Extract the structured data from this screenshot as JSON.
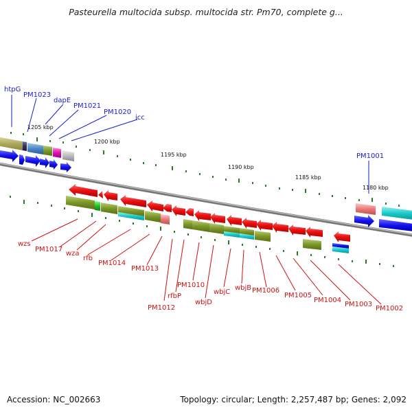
{
  "title": "Pasteurella multocida subsp. multocida str. Pm70, complete g...",
  "footer": {
    "accession": "Accession: NC_002663",
    "summary": "Topology: circular; Length: 2,257,487 bp; Genes: 2,092"
  },
  "ruler_labels": [
    "1205 kbp",
    "1200 kbp",
    "1195 kbp",
    "1190 kbp",
    "1185 kbp",
    "1180 kbp"
  ],
  "genes_top": [
    "htpG",
    "PM1023",
    "dapE",
    "PM1021",
    "PM1020",
    "icc",
    "PM1001"
  ],
  "genes_bottom": [
    "wzs",
    "PM1017",
    "wza",
    "rfb",
    "PM1014",
    "PM1013",
    "PM1012",
    "rfbP",
    "PM1010",
    "wbjD",
    "wbjC",
    "wbjB",
    "PM1006",
    "PM1005",
    "PM1004",
    "PM1003",
    "PM1002"
  ],
  "colors": {
    "top_label": "#1a1acc",
    "bottom_label": "#cc1111",
    "forward_gene": "#1010e0",
    "reverse_gene": "#e01010",
    "olive": "#7a9628",
    "cyan": "#18c8c8",
    "backbone": "#8a8a8a",
    "tick": "#2a7a2a"
  }
}
